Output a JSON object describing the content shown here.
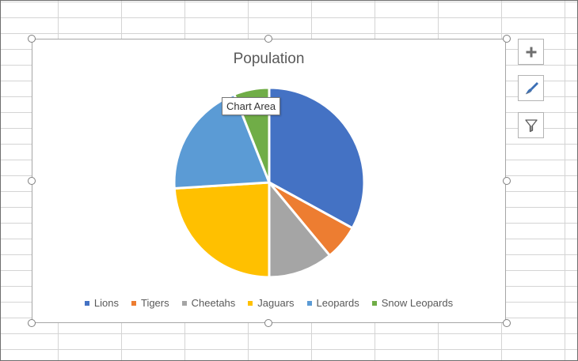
{
  "chart": {
    "title": "Population",
    "tooltip": "Chart Area",
    "legend_position": "bottom"
  },
  "chart_data": {
    "type": "pie",
    "title": "Population",
    "categories": [
      "Lions",
      "Tigers",
      "Cheetahs",
      "Jaguars",
      "Leopards",
      "Snow Leopards"
    ],
    "values": [
      33,
      6,
      11,
      24,
      20,
      6
    ],
    "colors": [
      "#4472C4",
      "#ED7D31",
      "#A5A5A5",
      "#FFC000",
      "#5B9BD5",
      "#70AD47"
    ],
    "legend": "bottom"
  },
  "side_buttons": [
    {
      "icon": "plus-icon"
    },
    {
      "icon": "paintbrush-icon"
    },
    {
      "icon": "funnel-icon"
    }
  ]
}
